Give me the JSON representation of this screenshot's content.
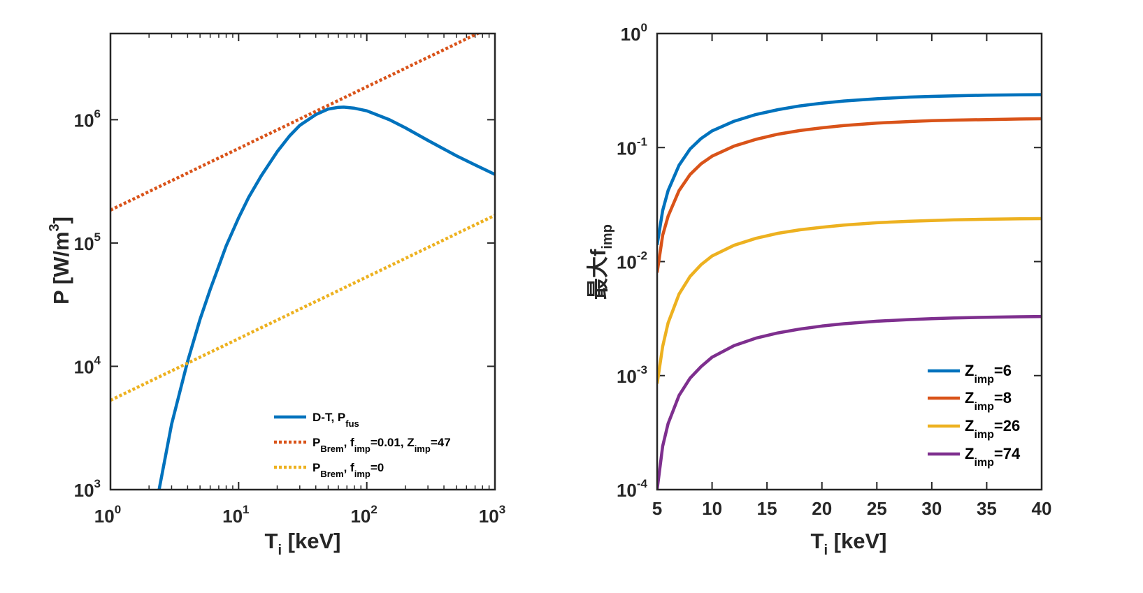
{
  "chart_data": [
    {
      "type": "line",
      "xscale": "log",
      "yscale": "log",
      "xlim": [
        1,
        1000
      ],
      "ylim": [
        1000,
        5000000
      ],
      "xlabel": "T",
      "xlabel_sub": "i",
      "xlabel_unit": " [keV]",
      "ylabel": "P [W/m",
      "ylabel_sup": "3",
      "ylabel_end": "]",
      "x_ticks": [
        {
          "base": "10",
          "exp": "0"
        },
        {
          "base": "10",
          "exp": "1"
        },
        {
          "base": "10",
          "exp": "2"
        },
        {
          "base": "10",
          "exp": "3"
        }
      ],
      "y_ticks": [
        {
          "base": "10",
          "exp": "3"
        },
        {
          "base": "10",
          "exp": "4"
        },
        {
          "base": "10",
          "exp": "5"
        },
        {
          "base": "10",
          "exp": "6"
        }
      ],
      "legend_position": "bottom-right",
      "series": [
        {
          "color": "#0072BD",
          "style": "solid",
          "legend": [
            {
              "t": "D-T, P"
            },
            {
              "t": "fus",
              "sub": true
            }
          ],
          "x": [
            2.3,
            3,
            4,
            5,
            6,
            8,
            10,
            12,
            15,
            20,
            25,
            30,
            40,
            50,
            60,
            66,
            80,
            100,
            150,
            200,
            300,
            500,
            700,
            1000
          ],
          "y": [
            800,
            3400,
            11000,
            24000,
            42000,
            95000,
            160000,
            235000,
            350000,
            550000,
            740000,
            900000,
            1100000,
            1220000,
            1260000,
            1265000,
            1240000,
            1180000,
            1000000,
            860000,
            680000,
            510000,
            430000,
            360000
          ]
        },
        {
          "color": "#D95319",
          "style": "dotted",
          "legend": [
            {
              "t": "P"
            },
            {
              "t": "Brem",
              "sub": true
            },
            {
              "t": ", f"
            },
            {
              "t": "imp",
              "sub": true
            },
            {
              "t": "=0.01, Z"
            },
            {
              "t": "imp",
              "sub": true
            },
            {
              "t": "=47"
            }
          ],
          "x": [
            1,
            1000
          ],
          "y": [
            185000,
            5850000
          ]
        },
        {
          "color": "#EDB120",
          "style": "dotted",
          "legend": [
            {
              "t": "P"
            },
            {
              "t": "Brem",
              "sub": true
            },
            {
              "t": ", f"
            },
            {
              "t": "imp",
              "sub": true
            },
            {
              "t": "=0"
            }
          ],
          "x": [
            1,
            1000
          ],
          "y": [
            5300,
            168000
          ]
        }
      ]
    },
    {
      "type": "line",
      "xscale": "linear",
      "yscale": "log",
      "xlim": [
        5,
        40
      ],
      "ylim": [
        0.0001,
        1
      ],
      "xlabel": "T",
      "xlabel_sub": "i",
      "xlabel_unit": " [keV]",
      "ylabel": "最大f",
      "ylabel_sub": "imp",
      "x_ticks": [
        "5",
        "10",
        "15",
        "20",
        "25",
        "30",
        "35",
        "40"
      ],
      "y_ticks": [
        {
          "base": "10",
          "exp": "-4"
        },
        {
          "base": "10",
          "exp": "-3"
        },
        {
          "base": "10",
          "exp": "-2"
        },
        {
          "base": "10",
          "exp": "-1"
        },
        {
          "base": "10",
          "exp": "0"
        }
      ],
      "legend_position": "bottom-right",
      "x": [
        5,
        5.5,
        6,
        7,
        8,
        9,
        10,
        12,
        14,
        16,
        18,
        20,
        22,
        25,
        28,
        30,
        32,
        35,
        38,
        40
      ],
      "series": [
        {
          "color": "#0072BD",
          "legend": [
            {
              "t": "Z"
            },
            {
              "t": "imp",
              "sub": true
            },
            {
              "t": "=6"
            }
          ],
          "y": [
            0.014,
            0.028,
            0.042,
            0.07,
            0.097,
            0.12,
            0.14,
            0.17,
            0.195,
            0.215,
            0.232,
            0.245,
            0.256,
            0.268,
            0.277,
            0.281,
            0.284,
            0.288,
            0.29,
            0.291
          ]
        },
        {
          "color": "#D95319",
          "legend": [
            {
              "t": "Z"
            },
            {
              "t": "imp",
              "sub": true
            },
            {
              "t": "=8"
            }
          ],
          "y": [
            0.008,
            0.017,
            0.025,
            0.042,
            0.058,
            0.072,
            0.084,
            0.103,
            0.118,
            0.131,
            0.141,
            0.149,
            0.156,
            0.164,
            0.169,
            0.172,
            0.174,
            0.176,
            0.178,
            0.179
          ]
        },
        {
          "color": "#EDB120",
          "legend": [
            {
              "t": "Z"
            },
            {
              "t": "imp",
              "sub": true
            },
            {
              "t": "=26"
            }
          ],
          "y": [
            0.00085,
            0.0018,
            0.0029,
            0.0052,
            0.0074,
            0.0094,
            0.0112,
            0.0139,
            0.016,
            0.0177,
            0.019,
            0.02,
            0.0209,
            0.0219,
            0.0226,
            0.0229,
            0.0232,
            0.0235,
            0.0237,
            0.0238
          ]
        },
        {
          "color": "#7E2F8E",
          "legend": [
            {
              "t": "Z"
            },
            {
              "t": "imp",
              "sub": true
            },
            {
              "t": "=74"
            }
          ],
          "y": [
            0.0001,
            0.00024,
            0.00038,
            0.00067,
            0.00095,
            0.0012,
            0.00145,
            0.00183,
            0.00213,
            0.00237,
            0.00256,
            0.00272,
            0.00285,
            0.003,
            0.0031,
            0.00316,
            0.0032,
            0.00325,
            0.00328,
            0.0033
          ]
        }
      ]
    }
  ]
}
